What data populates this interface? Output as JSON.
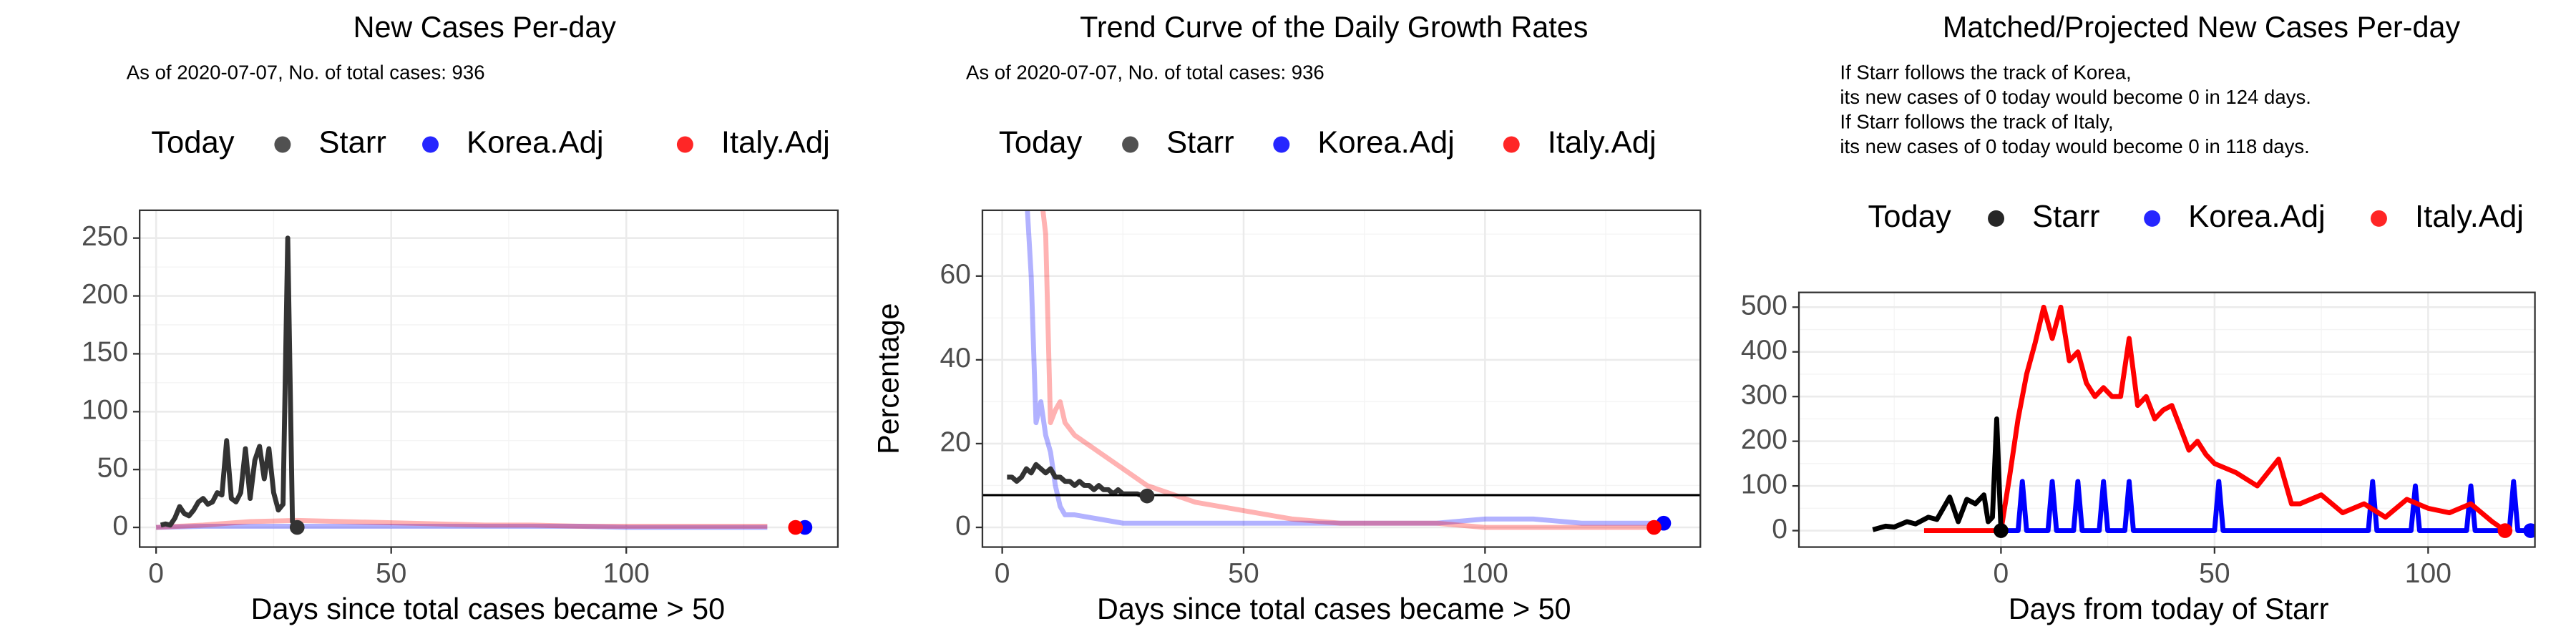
{
  "chart_data": [
    {
      "type": "line",
      "title": "New Cases Per-day",
      "subtitle": [
        "As of 2020-07-07, No. of total cases: 936"
      ],
      "legend_title": "Today",
      "xlabel": "Days since total cases became > 50",
      "xlim": [
        -3.5,
        145
      ],
      "ylim": [
        -17,
        274
      ],
      "xticks": [
        0,
        50,
        100
      ],
      "yticks": [
        0,
        50,
        100,
        150,
        200,
        250
      ],
      "xminor": [
        25,
        75,
        125
      ],
      "yminor": [
        25,
        75,
        125,
        175,
        225
      ],
      "grid": true,
      "series": [
        {
          "name": "Starr",
          "color": "#333333",
          "line_opacity": 1,
          "x": [
            1,
            2,
            3,
            4,
            5,
            6,
            7,
            8,
            9,
            10,
            11,
            12,
            13,
            14,
            15,
            16,
            17,
            18,
            19,
            20,
            21,
            22,
            23,
            24,
            25,
            26,
            27,
            28,
            29,
            30
          ],
          "values": [
            2,
            3,
            2,
            8,
            18,
            12,
            10,
            15,
            22,
            25,
            20,
            22,
            30,
            28,
            75,
            25,
            22,
            30,
            68,
            25,
            58,
            70,
            42,
            68,
            30,
            15,
            20,
            250,
            5,
            0
          ],
          "today_x": 30,
          "today_value": 0
        },
        {
          "name": "Korea.Adj",
          "color": "#0000ff",
          "line_opacity": 0.3,
          "x": [
            0,
            10,
            20,
            30,
            40,
            50,
            60,
            70,
            80,
            90,
            100,
            110,
            120,
            130
          ],
          "values": [
            0,
            1,
            1,
            1,
            1,
            1,
            1,
            1,
            1,
            1,
            0,
            0,
            0,
            0
          ],
          "today_x": 138,
          "today_value": 0
        },
        {
          "name": "Italy.Adj",
          "color": "#ff0000",
          "line_opacity": 0.3,
          "x": [
            0,
            10,
            20,
            30,
            40,
            50,
            60,
            70,
            80,
            90,
            100,
            110,
            120,
            130
          ],
          "values": [
            0,
            2,
            5,
            6,
            5,
            4,
            3,
            2,
            2,
            1,
            1,
            1,
            1,
            1
          ],
          "today_x": 136,
          "today_value": 0
        }
      ]
    },
    {
      "type": "line",
      "title": "Trend Curve of the Daily Growth Rates",
      "subtitle": [
        "As of 2020-07-07, No. of total cases: 936"
      ],
      "legend_title": "Today",
      "xlabel": "Days since total cases became > 50",
      "ylabel": "Percentage",
      "xlim": [
        -4.1,
        144.6
      ],
      "ylim": [
        -4.7,
        75.7
      ],
      "xticks": [
        0,
        50,
        100
      ],
      "yticks": [
        0,
        20,
        40,
        60
      ],
      "xminor": [
        25,
        75,
        125
      ],
      "yminor": [
        10,
        30,
        50,
        70
      ],
      "grid": true,
      "hline": 7.7,
      "series": [
        {
          "name": "Starr",
          "color": "#333333",
          "line_opacity": 1,
          "x": [
            1,
            2,
            3,
            4,
            5,
            6,
            7,
            8,
            9,
            10,
            11,
            12,
            13,
            14,
            15,
            16,
            17,
            18,
            19,
            20,
            21,
            22,
            23,
            24,
            25,
            26,
            27,
            28,
            29,
            30
          ],
          "values": [
            12,
            12,
            11,
            12,
            14,
            13,
            15,
            14,
            13,
            14,
            12,
            12,
            11,
            11,
            10,
            11,
            10,
            10,
            9,
            10,
            9,
            9,
            8,
            9,
            8,
            8,
            8,
            8,
            7.5,
            7.5
          ],
          "today_x": 30,
          "today_value": 7.5
        },
        {
          "name": "Korea.Adj",
          "color": "#0000ff",
          "line_opacity": 0.3,
          "x": [
            5,
            6,
            7,
            8,
            9,
            10,
            11,
            12,
            13,
            15,
            20,
            25,
            30,
            40,
            50,
            60,
            70,
            80,
            90,
            100,
            110,
            120,
            130,
            137
          ],
          "values": [
            80,
            60,
            25,
            30,
            22,
            18,
            10,
            5,
            3,
            3,
            2,
            1,
            1,
            1,
            1,
            1,
            1,
            1,
            1,
            2,
            2,
            1,
            1,
            1
          ],
          "today_x": 137,
          "today_value": 1
        },
        {
          "name": "Italy.Adj",
          "color": "#ff0000",
          "line_opacity": 0.3,
          "x": [
            8,
            9,
            10,
            11,
            12,
            13,
            15,
            20,
            25,
            30,
            40,
            50,
            60,
            70,
            80,
            90,
            100,
            110,
            120,
            130,
            135
          ],
          "values": [
            80,
            70,
            25,
            28,
            30,
            25,
            22,
            18,
            14,
            10,
            6,
            4,
            2,
            1,
            1,
            1,
            0,
            0,
            0,
            0,
            0
          ],
          "today_x": 135,
          "today_value": 0
        }
      ]
    },
    {
      "type": "line",
      "title": "Matched/Projected New Cases Per-day",
      "subtitle": [
        "If Starr follows the track of Korea,",
        "its new cases of 0 today would become 0 in 124 days.",
        "If Starr follows the track of Italy,",
        "its new cases of 0 today would become 0 in 118 days."
      ],
      "legend_title": "Today",
      "xlabel": "Days from today of Starr",
      "xlim": [
        -47.3,
        125
      ],
      "ylim": [
        -36.8,
        533
      ],
      "xticks": [
        0,
        50,
        100
      ],
      "yticks": [
        0,
        100,
        200,
        300,
        400,
        500
      ],
      "xminor": [
        -25,
        25,
        75
      ],
      "yminor": [
        50,
        150,
        250,
        350,
        450
      ],
      "grid": true,
      "series": [
        {
          "name": "Starr",
          "color": "#000000",
          "line_opacity": 1,
          "x": [
            -30,
            -27,
            -25,
            -22,
            -20,
            -17,
            -15,
            -12,
            -10,
            -8,
            -6,
            -4,
            -3,
            -2,
            -1,
            0
          ],
          "values": [
            2,
            10,
            8,
            20,
            15,
            30,
            25,
            75,
            20,
            70,
            60,
            80,
            20,
            30,
            250,
            0
          ],
          "today_x": 0,
          "today_value": 0
        },
        {
          "name": "Korea.Adj",
          "color": "#0000ff",
          "line_opacity": 1,
          "x": [
            0,
            4,
            5,
            6,
            11,
            12,
            13,
            17,
            18,
            19,
            23,
            24,
            25,
            29,
            30,
            31,
            50,
            51,
            52,
            86,
            87,
            88,
            96,
            97,
            98,
            109,
            110,
            111,
            119,
            120,
            121,
            124
          ],
          "values": [
            0,
            0,
            110,
            0,
            0,
            110,
            0,
            0,
            110,
            0,
            0,
            110,
            0,
            0,
            110,
            0,
            0,
            110,
            0,
            0,
            110,
            0,
            0,
            100,
            0,
            0,
            100,
            0,
            0,
            110,
            0,
            0
          ],
          "today_x": 124,
          "today_value": 0
        },
        {
          "name": "Italy.Adj",
          "color": "#ff0000",
          "line_opacity": 1,
          "x": [
            -18,
            0,
            2,
            4,
            6,
            8,
            10,
            12,
            14,
            16,
            18,
            20,
            22,
            24,
            26,
            28,
            30,
            32,
            34,
            36,
            38,
            40,
            42,
            44,
            46,
            48,
            50,
            55,
            60,
            65,
            68,
            70,
            75,
            80,
            85,
            90,
            95,
            100,
            105,
            110,
            115,
            118
          ],
          "values": [
            0,
            0,
            120,
            250,
            350,
            420,
            500,
            430,
            500,
            380,
            400,
            330,
            300,
            320,
            300,
            300,
            430,
            280,
            300,
            250,
            270,
            280,
            230,
            180,
            200,
            170,
            150,
            130,
            100,
            160,
            60,
            60,
            80,
            40,
            60,
            30,
            70,
            50,
            40,
            60,
            20,
            0
          ],
          "today_x": 118,
          "today_value": 0
        }
      ]
    }
  ]
}
